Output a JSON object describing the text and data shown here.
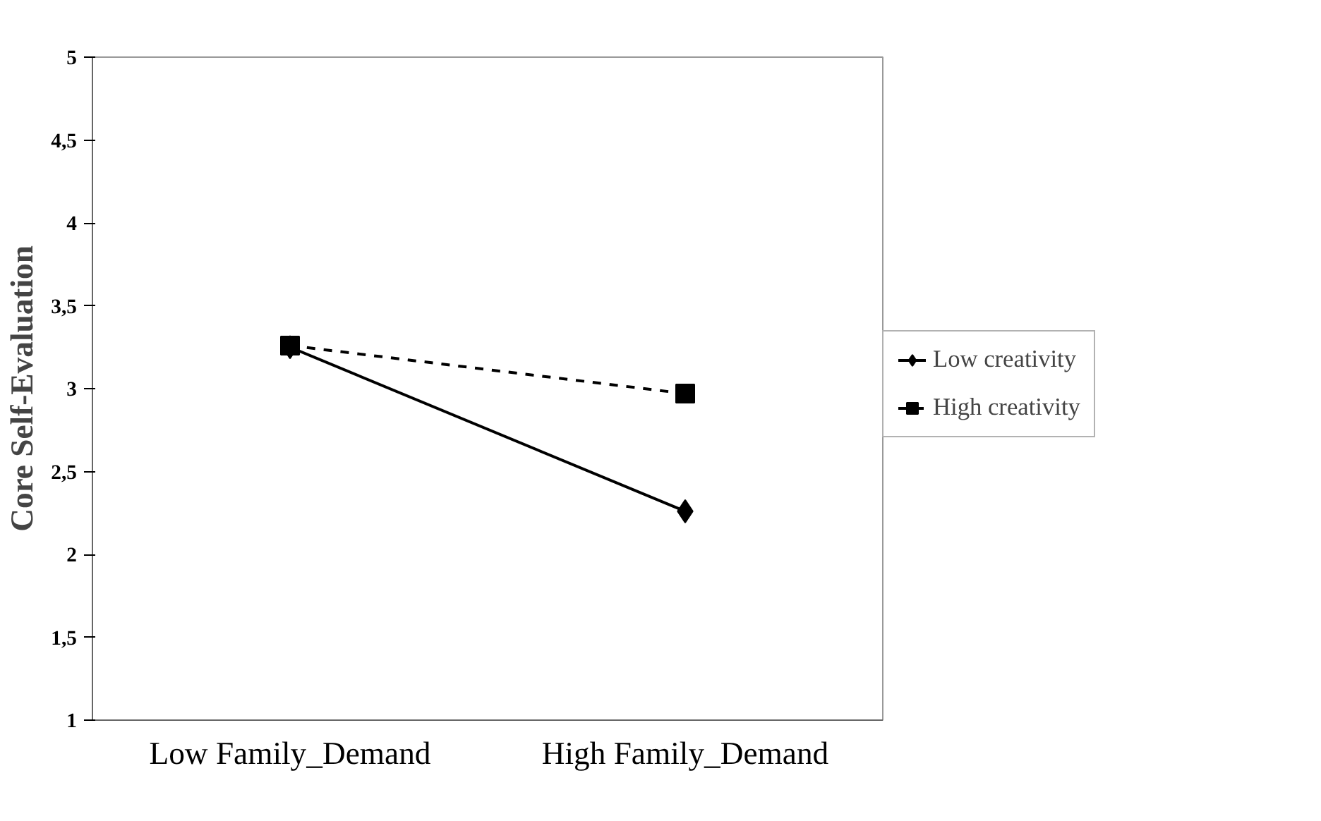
{
  "chart_data": {
    "type": "line",
    "ylabel": "Core Self-Evaluation",
    "categories": [
      "Low Family_Demand",
      "High Family_Demand"
    ],
    "series": [
      {
        "name": "Low creativity",
        "color": "#000000",
        "values": [
          3.25,
          2.26
        ],
        "marker": "diamond",
        "line_style": "solid"
      },
      {
        "name": "High creativity",
        "color": "#000000",
        "values": [
          3.26,
          2.97
        ],
        "marker": "square",
        "line_style": "dashed"
      }
    ],
    "ylim": [
      1,
      5
    ],
    "yticks": [
      1,
      {
        "value": 1.5,
        "label": "1,5"
      },
      2,
      {
        "value": 2.5,
        "label": "2,5"
      },
      3,
      {
        "value": 3.5,
        "label": "3,5"
      },
      4,
      {
        "value": 4.5,
        "label": "4,5"
      },
      5
    ],
    "grid": false,
    "legend": "right"
  }
}
